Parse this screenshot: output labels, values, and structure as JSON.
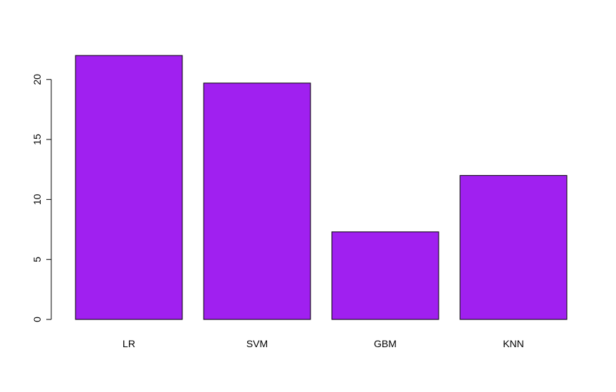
{
  "chart_data": {
    "type": "bar",
    "title": "",
    "xlabel": "",
    "ylabel": "",
    "categories": [
      "LR",
      "SVM",
      "GBM",
      "KNN"
    ],
    "values": [
      22.0,
      19.7,
      7.3,
      12.0
    ],
    "ylim": [
      0,
      22.0
    ],
    "yticks": [
      0,
      5,
      10,
      15,
      20
    ],
    "ytick_labels": [
      "0",
      "5",
      "10",
      "15",
      "20"
    ],
    "bar_color": "#A020F0",
    "bar_border_color": "#000000",
    "grid": false,
    "legend": "none"
  }
}
